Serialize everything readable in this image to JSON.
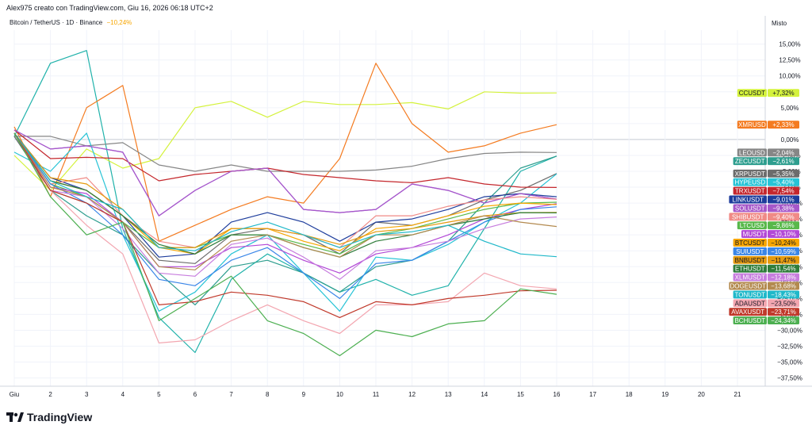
{
  "header": {
    "caption": "Alex975 creato con TradingView.com, Giu 16, 2026 06:18 UTC+2",
    "symbol": "Bitcoin / TetherUS · 1D · Binance",
    "change": "−10,24%"
  },
  "scale_mode": "Misto",
  "brand": "TradingView",
  "chart_data": {
    "type": "line",
    "x": [
      "Giu",
      "2",
      "3",
      "4",
      "5",
      "6",
      "7",
      "8",
      "9",
      "10",
      "11",
      "12",
      "13",
      "14",
      "15",
      "16"
    ],
    "x_ticks": [
      "Giu",
      "2",
      "3",
      "4",
      "5",
      "6",
      "7",
      "8",
      "9",
      "10",
      "11",
      "12",
      "13",
      "14",
      "15",
      "16",
      "17",
      "18",
      "19",
      "20",
      "21"
    ],
    "y_ticks": [
      "15,00%",
      "12,50%",
      "10,00%",
      "7,50%",
      "5,00%",
      "2,50%",
      "0,00%",
      "−2,50%",
      "−5,00%",
      "−7,50%",
      "−10,00%",
      "−12,50%",
      "−15,00%",
      "−17,50%",
      "−20,00%",
      "−22,50%",
      "−25,00%",
      "−27,50%",
      "−30,00%",
      "−32,50%",
      "−35,00%",
      "−37,50%"
    ],
    "ylim": [
      -38.8,
      17.2
    ],
    "series": [
      {
        "name": "CCUSDT",
        "label": "+7,32%",
        "color": "#d4f23c",
        "labelColor": "#131722",
        "values": [
          -2.5,
          -8,
          -1.5,
          -4.5,
          -3,
          5,
          6,
          3.5,
          6,
          5.5,
          5.5,
          5.8,
          4.8,
          7.5,
          7.3,
          7.32
        ]
      },
      {
        "name": "XMRUSD",
        "label": "+2,33%",
        "color": "#f47b20",
        "labelColor": "#ffffff",
        "values": [
          2,
          -9,
          5,
          8.5,
          -16,
          -13.5,
          -11,
          -9,
          -10,
          -3,
          12,
          2.5,
          -2,
          -1,
          1,
          2.33
        ]
      },
      {
        "name": "LEOUSD",
        "label": "−2,04%",
        "color": "#868686",
        "labelColor": "#ffffff",
        "values": [
          0.5,
          0.5,
          -1,
          -0.5,
          -4,
          -5,
          -4,
          -5,
          -5,
          -5,
          -4.8,
          -4.2,
          -3,
          -2.2,
          -2,
          -2.04
        ]
      },
      {
        "name": "ZECUSDT",
        "label": "−2,61%",
        "color": "#2e9e8f",
        "labelColor": "#ffffff",
        "values": [
          0.5,
          -8,
          -12,
          -15,
          -21,
          -26,
          -20,
          -19,
          -21,
          -24,
          -20,
          -19,
          -16,
          -10,
          -4.5,
          -2.61
        ]
      },
      {
        "name": "XRPUSDT",
        "label": "−5,35%",
        "color": "#6c6c6c",
        "labelColor": "#ffffff",
        "values": [
          0.5,
          -8,
          -10,
          -13,
          -19,
          -19.5,
          -15,
          -14,
          -15,
          -18,
          -13,
          -13.5,
          -12,
          -9.5,
          -8,
          -5.35
        ]
      },
      {
        "name": "HYPEUSD",
        "label": "−5,40%",
        "color": "#27c3d6",
        "labelColor": "#ffffff",
        "values": [
          -2,
          -5,
          1,
          -15,
          -27,
          -24,
          -18,
          -15,
          -21,
          -27,
          -18.5,
          -19,
          -16.5,
          -13,
          -10,
          -5.4
        ]
      },
      {
        "name": "TRXUSDT",
        "label": "−7,54%",
        "color": "#c4272d",
        "labelColor": "#ffffff",
        "values": [
          1.5,
          -3,
          -2.8,
          -3,
          -6.5,
          -5.5,
          -5,
          -4.5,
          -5.5,
          -6,
          -6.5,
          -6.8,
          -6,
          -7,
          -7.5,
          -7.54
        ]
      },
      {
        "name": "LINKUSDT",
        "label": "−9,01%",
        "color": "#1e3d9c",
        "labelColor": "#ffffff",
        "values": [
          1,
          -6,
          -8,
          -12,
          -18.5,
          -18,
          -13,
          -11.5,
          -13,
          -16,
          -13,
          -12.5,
          -11,
          -9,
          -8.5,
          -9.01
        ]
      },
      {
        "name": "SOLUSDT",
        "label": "−9,38%",
        "color": "#a657c9",
        "labelColor": "#ffffff",
        "values": [
          1.5,
          -1.5,
          -1,
          -2,
          -12,
          -8,
          -5,
          -4.5,
          -11,
          -11.5,
          -11,
          -7,
          -8,
          -10,
          -8.5,
          -9.38
        ]
      },
      {
        "name": "SHIBUSDT",
        "label": "−9,40%",
        "color": "#f08a86",
        "labelColor": "#ffffff",
        "values": [
          1,
          -7,
          -6,
          -12,
          -16,
          -17,
          -14,
          -14,
          -15,
          -17,
          -12,
          -12,
          -10.5,
          -9.5,
          -9,
          -9.4
        ]
      },
      {
        "name": "LTCUSD",
        "label": "−9,86%",
        "color": "#58b84a",
        "labelColor": "#ffffff",
        "values": [
          1,
          -7,
          -9,
          -13,
          -17,
          -17,
          -15,
          -15,
          -16.5,
          -18,
          -15,
          -14,
          -12.5,
          -11,
          -10,
          -9.86
        ]
      },
      {
        "name": "MUSDT",
        "label": "−10,10%",
        "color": "#b248d6",
        "labelColor": "#ffffff",
        "values": [
          1,
          -7.5,
          -8.5,
          -13,
          -20,
          -20,
          -17,
          -16.5,
          -19,
          -21,
          -18,
          -17,
          -15,
          -12.5,
          -11,
          -10.1
        ]
      },
      {
        "name": "BTCUSDT",
        "label": "−10,24%",
        "color": "#f7a600",
        "labelColor": "#131722",
        "values": [
          1,
          -6.5,
          -8,
          -12,
          -17,
          -18,
          -14,
          -14,
          -16,
          -17.5,
          -14,
          -13.5,
          -12,
          -10.5,
          -10,
          -10.24
        ]
      },
      {
        "name": "SUIUSDT",
        "label": "−10,59%",
        "color": "#3a86e8",
        "labelColor": "#ffffff",
        "values": [
          1,
          -7,
          -10,
          -15,
          -22,
          -23,
          -19,
          -17,
          -21,
          -25,
          -19.5,
          -19,
          -16,
          -13,
          -11,
          -10.59
        ]
      },
      {
        "name": "BNBUSDT",
        "label": "−11,47%",
        "color": "#e59b0f",
        "labelColor": "#131722",
        "values": [
          1,
          -6,
          -7,
          -11,
          -17,
          -17,
          -14,
          -14,
          -15,
          -16.5,
          -14.5,
          -14,
          -13,
          -12,
          -11.5,
          -11.47
        ]
      },
      {
        "name": "ETHUSDT",
        "label": "−11,54%",
        "color": "#2f7d3a",
        "labelColor": "#ffffff",
        "values": [
          1,
          -6.5,
          -8,
          -12,
          -16.5,
          -18,
          -15,
          -15,
          -17,
          -18.5,
          -16,
          -15,
          -13.5,
          -12.5,
          -11.5,
          -11.54
        ]
      },
      {
        "name": "XLMUSDT",
        "label": "−12,18%",
        "color": "#c77dde",
        "labelColor": "#ffffff",
        "values": [
          1,
          -8,
          -9,
          -14,
          -21,
          -21.5,
          -16.5,
          -15.5,
          -18.5,
          -22,
          -17.5,
          -17,
          -16,
          -14,
          -12.5,
          -12.18
        ]
      },
      {
        "name": "DOGEUSDT",
        "label": "−13,68%",
        "color": "#b38a4f",
        "labelColor": "#ffffff",
        "values": [
          1,
          -7.5,
          -9,
          -13,
          -20,
          -20.5,
          -16,
          -15,
          -17,
          -18.5,
          -15,
          -15,
          -13.5,
          -12,
          -13,
          -13.68
        ]
      },
      {
        "name": "TONUSDT",
        "label": "−18,43%",
        "color": "#1fb8c9",
        "labelColor": "#ffffff",
        "values": [
          1,
          -6.5,
          -9,
          -11,
          -17,
          -17.5,
          -14.5,
          -13,
          -15,
          -17,
          -15,
          -14.5,
          -13.5,
          -16,
          -18,
          -18.43
        ]
      },
      {
        "name": "ADAUSDT",
        "label": "−23,50%",
        "color": "#f3a6b0",
        "labelColor": "#131722",
        "values": [
          1,
          -8,
          -13.5,
          -18,
          -32,
          -31.5,
          -28.5,
          -26,
          -28.5,
          -30.5,
          -26,
          -26,
          -25.5,
          -21,
          -23,
          -23.5
        ]
      },
      {
        "name": "AVAXUSDT",
        "label": "−23,71%",
        "color": "#c0392b",
        "labelColor": "#ffffff",
        "values": [
          1,
          -8,
          -10,
          -13,
          -26,
          -25.5,
          -24,
          -24.5,
          -25.5,
          -28,
          -25.5,
          -26,
          -25,
          -24.5,
          -23.8,
          -23.71
        ]
      },
      {
        "name": "BCHUSDT",
        "label": "−24,34%",
        "color": "#4caf50",
        "labelColor": "#ffffff",
        "values": [
          1,
          -9,
          -15,
          -13,
          -28.5,
          -25,
          -21.5,
          -28.5,
          -30.5,
          -34,
          -30,
          -31,
          -29,
          -28.5,
          -23.5,
          -24.34
        ]
      }
    ],
    "extra_lines": [
      {
        "color": "#20b2aa",
        "values": [
          0.5,
          12,
          14,
          -14,
          -28,
          -33.5,
          -22,
          -18,
          -21,
          -24,
          -22,
          -24.5,
          -23,
          -14,
          -5,
          -2.61
        ]
      },
      {
        "color": "#9d4edd",
        "values": [
          1.5,
          -1.5,
          -1,
          -2,
          -12,
          -8,
          -5,
          -4.5,
          -11,
          -11.5,
          -11,
          -7,
          -8,
          -10,
          -8.5,
          -9.38
        ]
      }
    ]
  }
}
